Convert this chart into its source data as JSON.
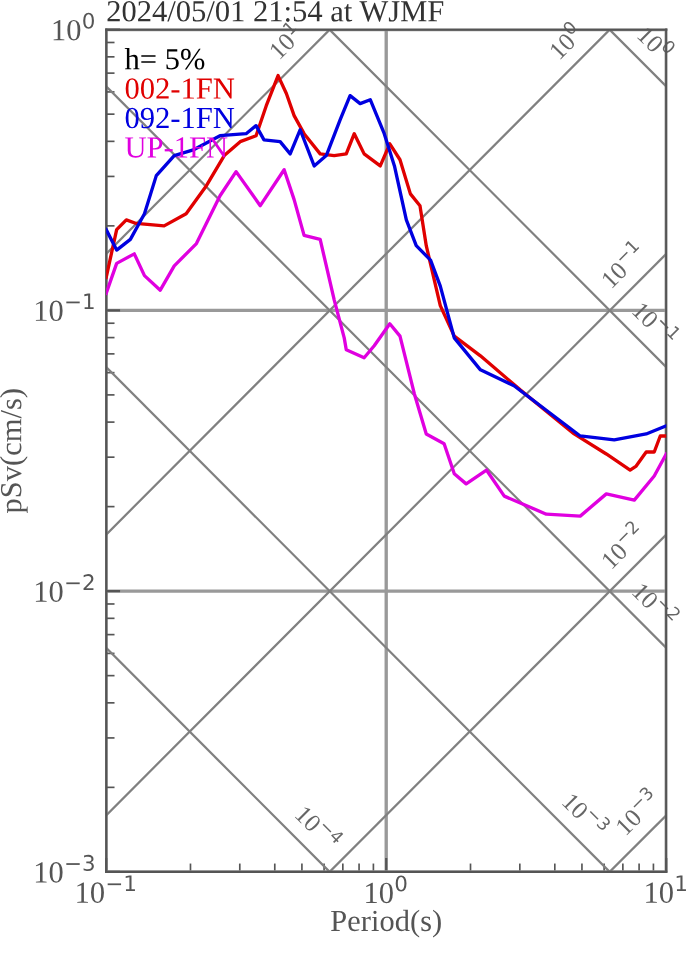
{
  "chart_data": {
    "type": "line",
    "title": "2024/05/01 21:54 at WJMF",
    "xlabel": "Period(s)",
    "ylabel": "pSv(cm/s)",
    "legend_title": "h= 5%",
    "legend": "top left",
    "log": "xy",
    "grid": true,
    "xlim": [
      0.1,
      10
    ],
    "ylim": [
      0.001,
      1
    ],
    "xticks": [
      {
        "value": 0.1,
        "label": "10$^{−1}$"
      },
      {
        "value": 1,
        "label": "10$^{0}$"
      },
      {
        "value": 10,
        "label": "10$^{1}$"
      }
    ],
    "yticks": [
      {
        "value": 0.001,
        "label": "10$^{−3}$"
      },
      {
        "value": 0.01,
        "label": "10$^{−2}$"
      },
      {
        "value": 0.1,
        "label": "10$^{−1}$"
      },
      {
        "value": 1,
        "label": "10$^{0}$"
      }
    ],
    "series": [
      {
        "name": "002-1FN",
        "color": "#e00000",
        "x": [
          0.1,
          0.109,
          0.118,
          0.128,
          0.161,
          0.193,
          0.228,
          0.264,
          0.301,
          0.343,
          0.373,
          0.411,
          0.44,
          0.469,
          0.509,
          0.581,
          0.652,
          0.72,
          0.769,
          0.834,
          0.952,
          1.03,
          1.12,
          1.22,
          1.32,
          1.39,
          1.56,
          1.75,
          2.17,
          3.01,
          4.69,
          6.11,
          7.43,
          7.81,
          8.48,
          9.06,
          9.52,
          10
        ],
        "values": [
          0.131,
          0.194,
          0.21,
          0.204,
          0.2,
          0.221,
          0.278,
          0.356,
          0.399,
          0.419,
          0.536,
          0.686,
          0.592,
          0.494,
          0.426,
          0.361,
          0.356,
          0.361,
          0.426,
          0.361,
          0.327,
          0.392,
          0.344,
          0.26,
          0.236,
          0.17,
          0.104,
          0.081,
          0.0689,
          0.0521,
          0.0363,
          0.0308,
          0.027,
          0.0279,
          0.0313,
          0.0313,
          0.0357,
          0.0357
        ]
      },
      {
        "name": "092-1FN",
        "color": "#0000e0",
        "x": [
          0.1,
          0.109,
          0.122,
          0.137,
          0.151,
          0.175,
          0.206,
          0.255,
          0.316,
          0.343,
          0.366,
          0.418,
          0.454,
          0.493,
          0.553,
          0.611,
          0.685,
          0.743,
          0.807,
          0.877,
          0.984,
          1.07,
          1.18,
          1.28,
          1.44,
          1.56,
          1.75,
          2.17,
          2.86,
          4.93,
          6.52,
          8.48,
          10
        ],
        "values": [
          0.194,
          0.164,
          0.179,
          0.221,
          0.302,
          0.356,
          0.374,
          0.419,
          0.426,
          0.455,
          0.405,
          0.399,
          0.361,
          0.44,
          0.327,
          0.356,
          0.478,
          0.582,
          0.545,
          0.563,
          0.426,
          0.327,
          0.21,
          0.17,
          0.151,
          0.122,
          0.0798,
          0.0614,
          0.0539,
          0.0357,
          0.0346,
          0.0363,
          0.0388
        ]
      },
      {
        "name": "UP-1FN",
        "color": "#e000e0",
        "x": [
          0.1,
          0.109,
          0.126,
          0.137,
          0.156,
          0.175,
          0.21,
          0.255,
          0.291,
          0.355,
          0.432,
          0.469,
          0.509,
          0.581,
          0.652,
          0.708,
          0.72,
          0.834,
          0.906,
          1.03,
          1.12,
          1.26,
          1.39,
          1.61,
          1.75,
          1.93,
          2.28,
          2.64,
          3.73,
          4.93,
          6.11,
          7.69,
          9.06,
          10
        ],
        "values": [
          0.115,
          0.147,
          0.159,
          0.133,
          0.118,
          0.144,
          0.173,
          0.256,
          0.312,
          0.236,
          0.317,
          0.248,
          0.185,
          0.179,
          0.109,
          0.0798,
          0.0724,
          0.0678,
          0.0748,
          0.0896,
          0.081,
          0.0505,
          0.0363,
          0.0335,
          0.0262,
          0.0241,
          0.027,
          0.0218,
          0.0188,
          0.0185,
          0.0222,
          0.0211,
          0.0257,
          0.0308
        ]
      },
      {
        "color": "#808080",
        "x": [
          0.1,
          0.628
        ],
        "values": [
          0.159,
          1
        ]
      },
      {
        "color": "#808080",
        "x": [
          0.1,
          6.28
        ],
        "values": [
          0.0159,
          1
        ]
      },
      {
        "color": "#808080",
        "x": [
          0.1,
          10
        ],
        "values": [
          0.00159,
          0.159
        ]
      },
      {
        "color": "#808080",
        "x": [
          0.628,
          10
        ],
        "values": [
          0.001,
          0.0159
        ]
      },
      {
        "color": "#808080",
        "x": [
          6.28,
          10
        ],
        "values": [
          0.001,
          0.00159
        ]
      },
      {
        "color": "#808080",
        "x": [
          6.28,
          10
        ],
        "values": [
          1,
          0.628
        ]
      },
      {
        "color": "#808080",
        "x": [
          0.628,
          10
        ],
        "values": [
          1,
          0.0628
        ]
      },
      {
        "color": "#808080",
        "x": [
          0.1,
          10
        ],
        "values": [
          0.628,
          0.00628
        ]
      },
      {
        "color": "#808080",
        "x": [
          0.1,
          6.28
        ],
        "values": [
          0.0628,
          0.001
        ]
      },
      {
        "color": "#808080",
        "x": [
          0.1,
          0.628
        ],
        "values": [
          0.00628,
          0.001
        ]
      }
    ],
    "annotations": [
      {
        "text": "10$^{1}$",
        "x": 0.5,
        "y": 0.796
      },
      {
        "text": "10$^{0}$",
        "x": 5,
        "y": 0.796
      },
      {
        "text": "10$^{0}$",
        "x": 8,
        "y": 0.785
      },
      {
        "text": "10$^{−1}$",
        "x": 8,
        "y": 0.127
      },
      {
        "text": "10$^{−1}$",
        "x": 8,
        "y": 0.0785
      },
      {
        "text": "10$^{−2}$",
        "x": 8,
        "y": 0.0127
      },
      {
        "text": "10$^{−2}$",
        "x": 8,
        "y": 0.00785
      },
      {
        "text": "10$^{−3}$",
        "x": 9,
        "y": 0.00143
      },
      {
        "text": "10$^{−3}$",
        "x": 4.5,
        "y": 0.0014
      },
      {
        "text": "10$^{−4}$",
        "x": 0.5,
        "y": 0.00126
      }
    ]
  }
}
